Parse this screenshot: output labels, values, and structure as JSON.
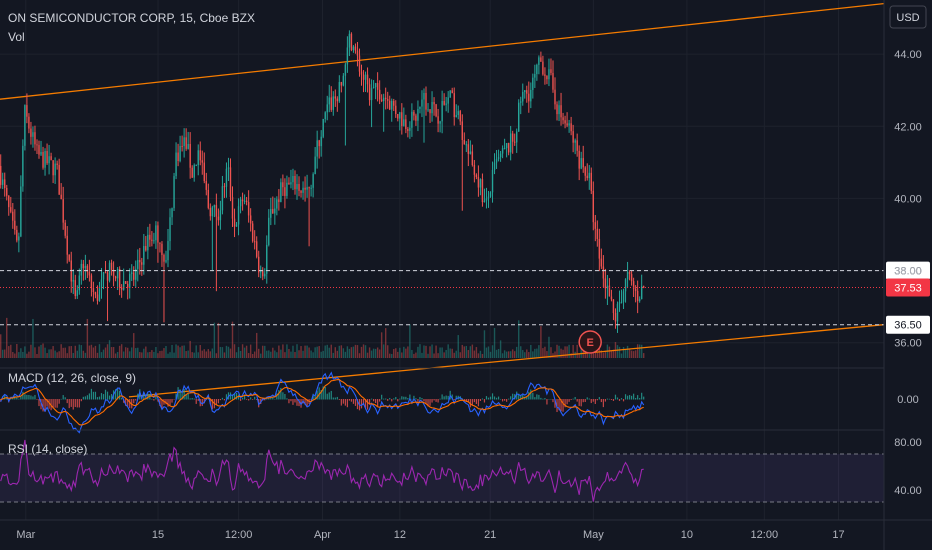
{
  "header": {
    "symbol": "ON SEMICONDUCTOR CORP, 15, Cboe BZX",
    "volume_label": "Vol"
  },
  "colors": {
    "background": "#131722",
    "up": "#26a69a",
    "down": "#ef5350",
    "trendline": "#f57c00",
    "macd_line": "#2962ff",
    "signal_line": "#ff6d00",
    "rsi_line": "#9c27b0",
    "rsi_band": "#7e57c2",
    "last_price": "#f23645",
    "grid": "#1e222d",
    "text": "#d1d4dc",
    "axis_text": "#b2b5be"
  },
  "chart_data": {
    "type": "candlestick",
    "title": "ON SEMICONDUCTOR CORP, 15, Cboe BZX",
    "currency": "USD",
    "price_ylim": [
      35.3,
      45.5
    ],
    "price_ticks": [
      36.0,
      38.0,
      40.0,
      42.0,
      44.0
    ],
    "price_tick_labels": [
      "36.00",
      "38.00",
      "40.00",
      "42.00",
      "44.00"
    ],
    "last_price": 37.53,
    "last_price_label": "37.53",
    "horizontal_levels": [
      {
        "value": 38.0,
        "label": "38.00"
      },
      {
        "value": 36.5,
        "label": "36.50"
      }
    ],
    "trendlines": [
      {
        "from": {
          "t": 0.0,
          "price": 42.75
        },
        "to": {
          "t": 1.37,
          "price": 45.4
        }
      },
      {
        "from": {
          "t": 0.2,
          "price": 34.5
        },
        "to": {
          "t": 1.37,
          "price": 36.5
        }
      }
    ],
    "path_anchors": [
      [
        0.0,
        40.9
      ],
      [
        0.03,
        38.5
      ],
      [
        0.04,
        42.4
      ],
      [
        0.06,
        41.2
      ],
      [
        0.09,
        40.8
      ],
      [
        0.11,
        38.2
      ],
      [
        0.12,
        37.0
      ],
      [
        0.13,
        38.3
      ],
      [
        0.15,
        37.2
      ],
      [
        0.17,
        38.0
      ],
      [
        0.19,
        37.7
      ],
      [
        0.21,
        37.8
      ],
      [
        0.23,
        38.8
      ],
      [
        0.245,
        39.1
      ],
      [
        0.26,
        38.2
      ],
      [
        0.275,
        41.2
      ],
      [
        0.29,
        41.6
      ],
      [
        0.3,
        40.7
      ],
      [
        0.31,
        41.3
      ],
      [
        0.325,
        39.8
      ],
      [
        0.34,
        39.5
      ],
      [
        0.355,
        40.9
      ],
      [
        0.365,
        39.2
      ],
      [
        0.38,
        40.1
      ],
      [
        0.395,
        38.9
      ],
      [
        0.41,
        37.6
      ],
      [
        0.42,
        39.5
      ],
      [
        0.44,
        40.3
      ],
      [
        0.46,
        40.4
      ],
      [
        0.48,
        40.1
      ],
      [
        0.495,
        41.5
      ],
      [
        0.51,
        42.5
      ],
      [
        0.53,
        43.0
      ],
      [
        0.545,
        44.5
      ],
      [
        0.56,
        43.6
      ],
      [
        0.575,
        42.9
      ],
      [
        0.59,
        43.0
      ],
      [
        0.61,
        42.6
      ],
      [
        0.63,
        42.1
      ],
      [
        0.645,
        42.2
      ],
      [
        0.66,
        42.8
      ],
      [
        0.68,
        42.3
      ],
      [
        0.7,
        42.8
      ],
      [
        0.715,
        42.1
      ],
      [
        0.73,
        41.1
      ],
      [
        0.745,
        40.5
      ],
      [
        0.755,
        39.7
      ],
      [
        0.77,
        40.9
      ],
      [
        0.785,
        41.3
      ],
      [
        0.8,
        41.7
      ],
      [
        0.81,
        42.8
      ],
      [
        0.825,
        43.0
      ],
      [
        0.84,
        43.8
      ],
      [
        0.855,
        43.3
      ],
      [
        0.87,
        42.3
      ],
      [
        0.885,
        41.9
      ],
      [
        0.9,
        41.1
      ],
      [
        0.915,
        40.6
      ],
      [
        0.925,
        39.0
      ],
      [
        0.935,
        38.0
      ],
      [
        0.945,
        37.4
      ],
      [
        0.955,
        36.6
      ],
      [
        0.965,
        37.3
      ],
      [
        0.975,
        37.8
      ],
      [
        0.99,
        37.3
      ],
      [
        1.0,
        37.53
      ]
    ],
    "x_tick_labels": [
      {
        "t": 0.04,
        "label": "Mar"
      },
      {
        "t": 0.245,
        "label": "15"
      },
      {
        "t": 0.37,
        "label": "12:00"
      },
      {
        "t": 0.5,
        "label": "Apr"
      },
      {
        "t": 0.62,
        "label": "12"
      },
      {
        "t": 0.76,
        "label": "21"
      },
      {
        "t": 0.92,
        "label": "May"
      },
      {
        "t": 1.065,
        "label": "10"
      },
      {
        "t": 1.185,
        "label": "12:00"
      },
      {
        "t": 1.3,
        "label": "17"
      }
    ],
    "earnings_marker": {
      "t": 0.915,
      "label": "E"
    },
    "macd": {
      "label": "MACD (12, 26, close, 9)",
      "ylim": [
        -0.9,
        0.9
      ],
      "tick": 0.0,
      "tick_label": "0.00"
    },
    "rsi": {
      "label": "RSI (14, close)",
      "ylim": [
        15,
        90
      ],
      "band": [
        30,
        70
      ],
      "ticks": [
        80.0,
        40.0
      ],
      "tick_labels": [
        "80.00",
        "40.00"
      ]
    },
    "grid": true
  }
}
